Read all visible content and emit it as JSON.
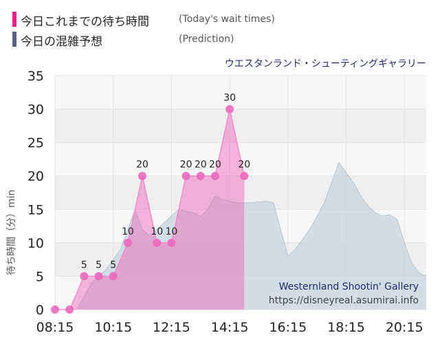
{
  "legend": {
    "today": {
      "label": "今日これまでの待ち時間",
      "sub": "(Today's wait times)",
      "color": "#f0208a"
    },
    "prediction": {
      "label": "今日の混雑予想",
      "sub": "(Prediction)",
      "color": "#5a5f86"
    }
  },
  "chart_data": {
    "type": "area",
    "title": "ウエスタンランド・シューティングギャラリー",
    "ylabel": "待ち時間（分）min",
    "xlabel": "",
    "ylim": [
      0,
      35
    ],
    "yticks": [
      0,
      5,
      10,
      15,
      20,
      25,
      30,
      35
    ],
    "xlim": [
      "08:15",
      "21:00"
    ],
    "xticks": [
      "08:15",
      "10:15",
      "12:15",
      "14:15",
      "16:15",
      "18:15",
      "20:15"
    ],
    "grid": true,
    "series": [
      {
        "key": "prediction",
        "color": "#c9d6e0",
        "x": [
          "08:15",
          "09:00",
          "09:30",
          "10:00",
          "10:30",
          "10:45",
          "11:00",
          "11:15",
          "11:30",
          "12:00",
          "12:15",
          "12:30",
          "13:00",
          "13:15",
          "13:30",
          "13:45",
          "14:00",
          "14:30",
          "15:00",
          "15:30",
          "15:45",
          "16:00",
          "16:15",
          "16:30",
          "17:00",
          "17:30",
          "17:45",
          "18:00",
          "18:30",
          "18:45",
          "19:00",
          "19:15",
          "19:30",
          "19:45",
          "20:00",
          "20:15",
          "20:30",
          "20:45",
          "21:00"
        ],
        "y": [
          0,
          0,
          4,
          6,
          9,
          12,
          15,
          12,
          11,
          13,
          14,
          15,
          14.5,
          14,
          15,
          17,
          16.5,
          16,
          16,
          16.2,
          16,
          12,
          8,
          9,
          12,
          16,
          19,
          22,
          19,
          17,
          15.5,
          14.5,
          14,
          14.2,
          13.5,
          10,
          7,
          5.5,
          5
        ]
      },
      {
        "key": "today",
        "color": "#ef5fb8",
        "x": [
          "08:15",
          "08:45",
          "09:15",
          "09:45",
          "10:15",
          "10:45",
          "11:15",
          "11:45",
          "12:15",
          "12:45",
          "13:15",
          "13:45",
          "14:15",
          "14:45"
        ],
        "y": [
          0,
          0,
          5,
          5,
          5,
          10,
          20,
          10,
          10,
          20,
          20,
          20,
          30,
          20
        ],
        "labels": [
          "",
          "",
          "5",
          "5",
          "5",
          "10",
          "20",
          "10",
          "10",
          "20",
          "20",
          "20",
          "30",
          "20"
        ]
      }
    ]
  },
  "watermark": {
    "name": "Westernland Shootin' Gallery",
    "url": "https://disneyreal.asumirai.info"
  }
}
